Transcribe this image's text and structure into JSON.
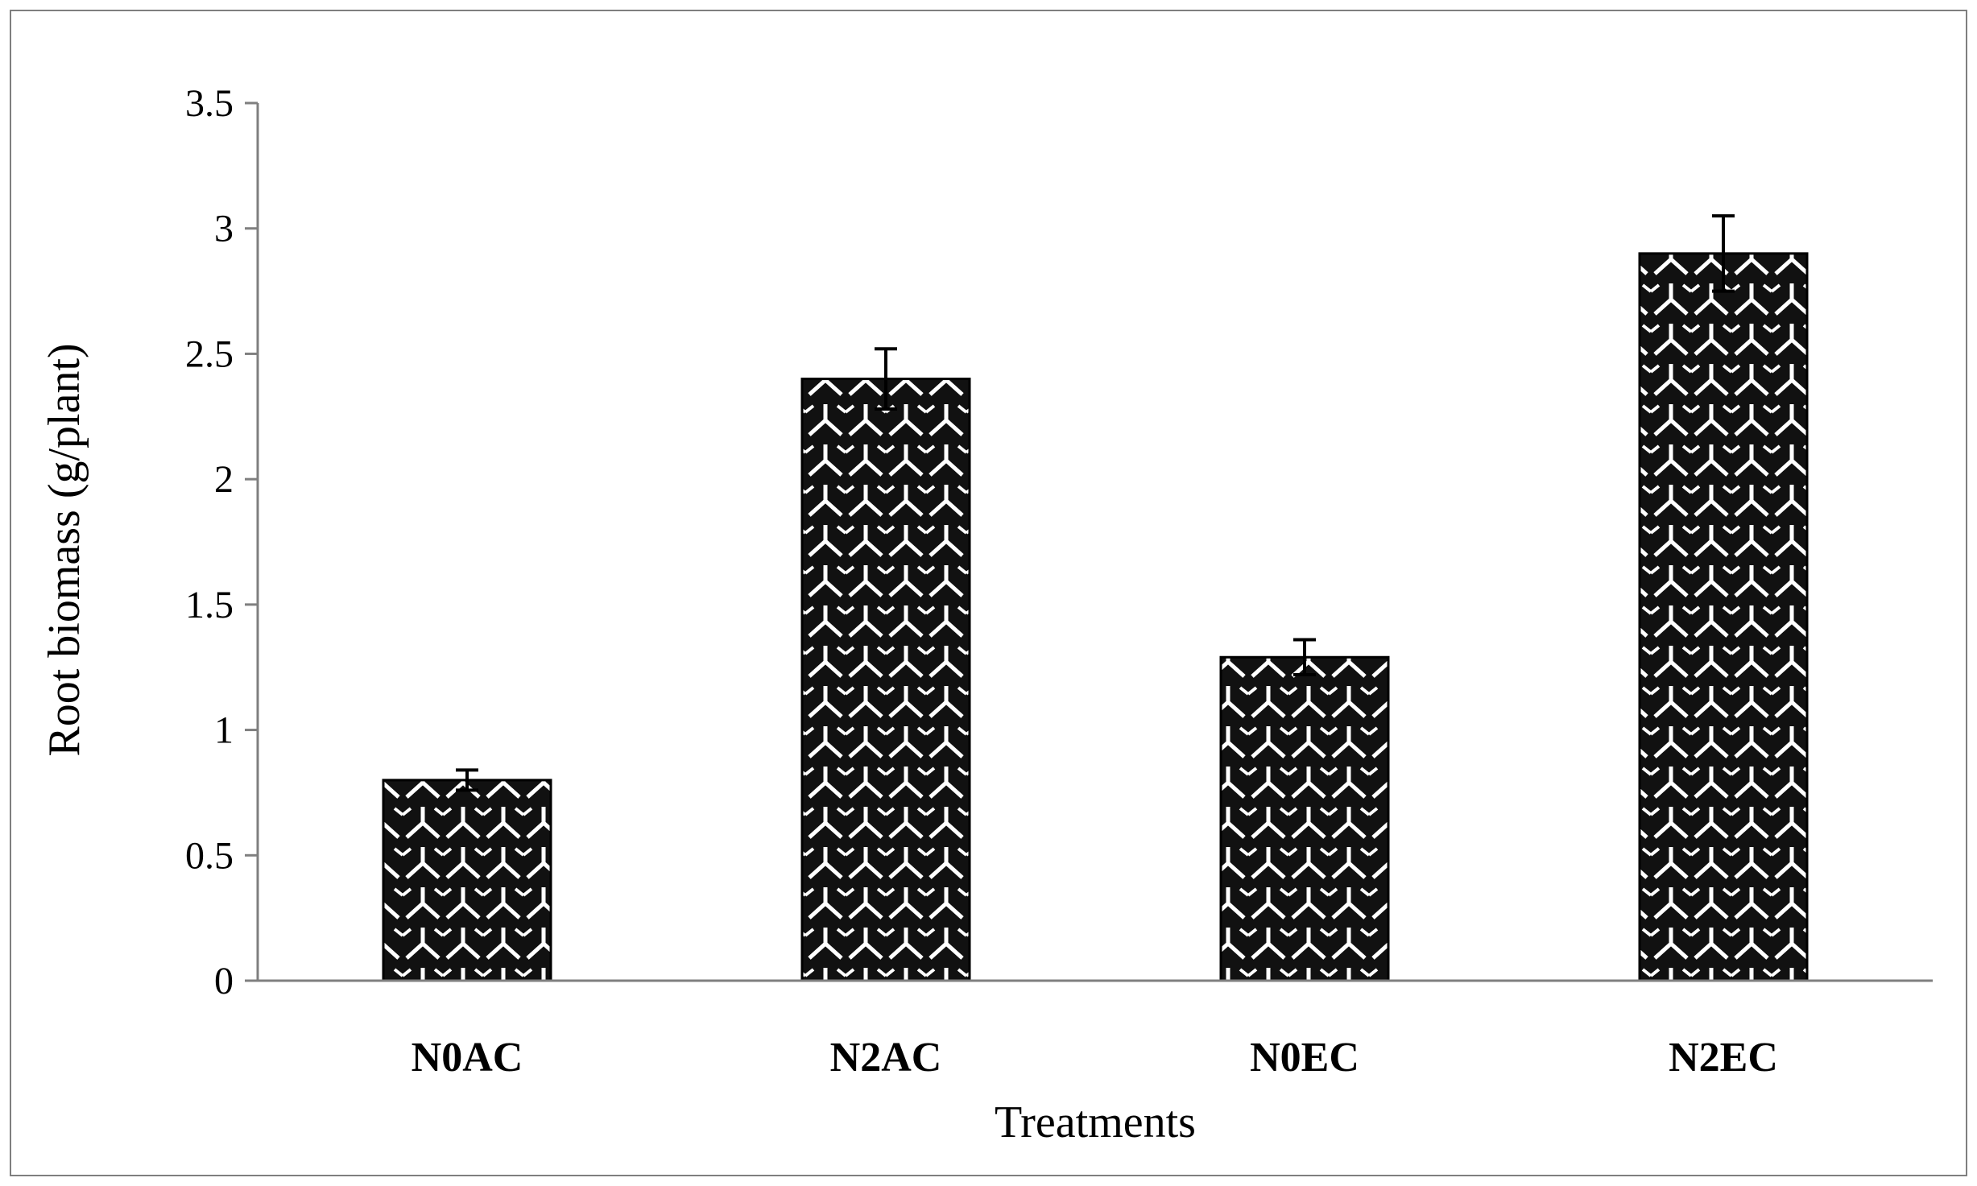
{
  "chart_data": {
    "type": "bar",
    "title": "",
    "xlabel": "Treatments",
    "ylabel": "Root biomass (g/plant)",
    "categories": [
      "N0AC",
      "N2AC",
      "N0EC",
      "N2EC"
    ],
    "values": [
      0.8,
      2.4,
      1.29,
      2.9
    ],
    "errors": [
      0.04,
      0.12,
      0.07,
      0.15
    ],
    "ylim": [
      0,
      3.5
    ],
    "yticks": [
      "0",
      "0.5",
      "1",
      "1.5",
      "2",
      "2.5",
      "3",
      "3.5"
    ],
    "ytick_values": [
      0,
      0.5,
      1,
      1.5,
      2,
      2.5,
      3,
      3.5
    ],
    "grid": false,
    "legend": "none",
    "colors": {
      "bar_fill": "#111111",
      "pattern_line": "#ffffff",
      "axis": "#7f7f7f",
      "frame": "#7f7f7f"
    }
  }
}
